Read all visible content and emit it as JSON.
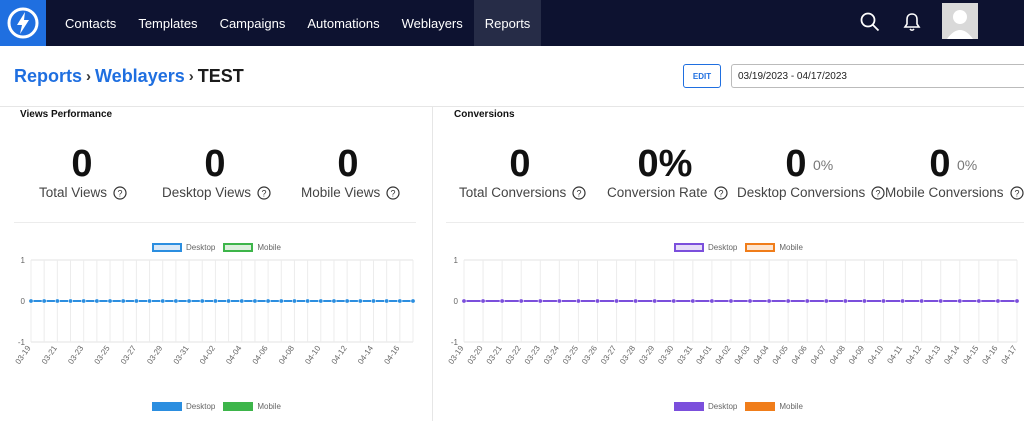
{
  "nav": {
    "items": [
      {
        "label": "Contacts",
        "active": false
      },
      {
        "label": "Templates",
        "active": false
      },
      {
        "label": "Campaigns",
        "active": false
      },
      {
        "label": "Automations",
        "active": false
      },
      {
        "label": "Weblayers",
        "active": false
      },
      {
        "label": "Reports",
        "active": true
      }
    ],
    "icons": [
      "lightning-logo",
      "search-icon",
      "bell-icon",
      "avatar"
    ]
  },
  "breadcrumb": {
    "reports": "Reports",
    "weblayers": "Weblayers",
    "current": "TEST",
    "sep": "›"
  },
  "toolbar": {
    "edit_label": "EDIT",
    "date_range": "03/19/2023 - 04/17/2023"
  },
  "views": {
    "title": "Views Performance",
    "stats": [
      {
        "value": "0",
        "label": "Total Views"
      },
      {
        "value": "0",
        "label": "Desktop Views"
      },
      {
        "value": "0",
        "label": "Mobile Views"
      }
    ]
  },
  "conversions": {
    "title": "Conversions",
    "stats": [
      {
        "value": "0",
        "label": "Total Conversions",
        "pct": ""
      },
      {
        "value": "0%",
        "label": "Conversion Rate",
        "pct": ""
      },
      {
        "value": "0",
        "label": "Desktop Conversions",
        "pct": "0%"
      },
      {
        "value": "0",
        "label": "Mobile Conversions",
        "pct": "0%"
      }
    ]
  },
  "chart_data": [
    {
      "type": "line",
      "x": [
        "03-19",
        "03-21",
        "03-23",
        "03-25",
        "03-27",
        "03-29",
        "03-31",
        "04-02",
        "04-04",
        "04-06",
        "04-08",
        "04-10",
        "04-12",
        "04-14",
        "04-16"
      ],
      "x_points": 30,
      "series": [
        {
          "name": "Desktop",
          "color": "#2b8ee0",
          "values_all_zero": true
        },
        {
          "name": "Mobile",
          "color": "#3db54a",
          "values_all_zero": true
        }
      ],
      "ylim": [
        -1,
        1
      ],
      "yticks": [
        "1",
        "0",
        "-1"
      ],
      "legend": "top and bottom"
    },
    {
      "type": "line",
      "x": [
        "03-19",
        "03-20",
        "03-21",
        "03-22",
        "03-23",
        "03-24",
        "03-25",
        "03-26",
        "03-27",
        "03-28",
        "03-29",
        "03-30",
        "03-31",
        "04-01",
        "04-02",
        "04-03",
        "04-04",
        "04-05",
        "04-06",
        "04-07",
        "04-08",
        "04-09",
        "04-10",
        "04-11",
        "04-12",
        "04-13",
        "04-14",
        "04-15",
        "04-16",
        "04-17"
      ],
      "series": [
        {
          "name": "Desktop",
          "color": "#7b4fdc",
          "values_all_zero": true
        },
        {
          "name": "Mobile",
          "color": "#f07d1a",
          "values_all_zero": true
        }
      ],
      "ylim": [
        -1,
        1
      ],
      "yticks": [
        "1",
        "0",
        "-1"
      ],
      "legend": "top and bottom"
    }
  ]
}
